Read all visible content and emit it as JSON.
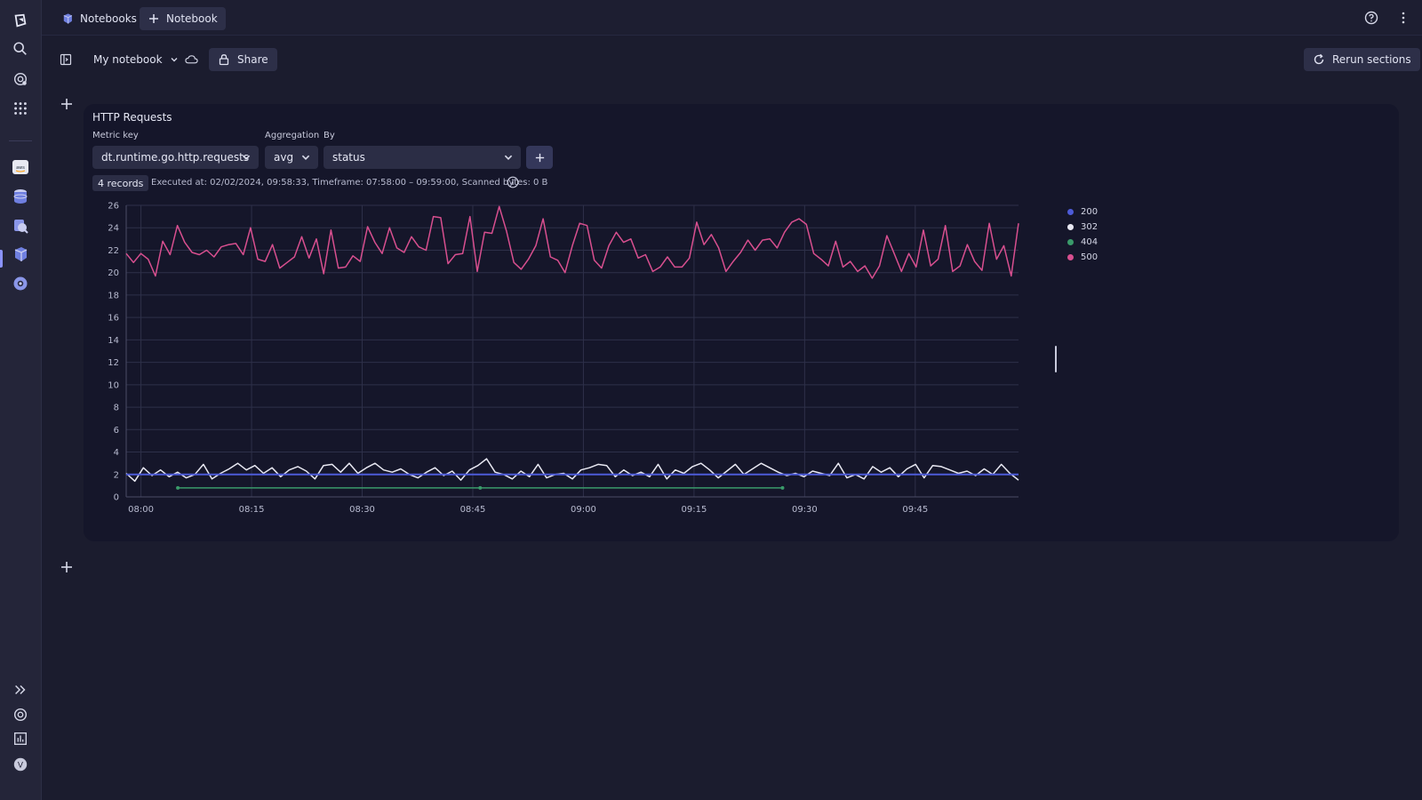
{
  "topbar": {
    "app_tab_label": "Notebooks",
    "new_tab_label": "Notebook"
  },
  "toolbar": {
    "notebook_name": "My notebook",
    "share_label": "Share",
    "rerun_label": "Rerun sections"
  },
  "section": {
    "title": "HTTP Requests",
    "metric_key_label": "Metric key",
    "metric_key_value": "dt.runtime.go.http.requests",
    "aggregation_label": "Aggregation",
    "aggregation_value": "avg",
    "by_label": "By",
    "by_value": "status",
    "records_badge": "4 records",
    "meta_text": "Executed at: 02/02/2024, 09:58:33, Timeframe: 07:58:00 – 09:59:00, Scanned bytes: 0 B"
  },
  "colors": {
    "s200": "#4d5bd8",
    "s302": "#e8e8f2",
    "s404": "#3a9a6a",
    "s500": "#d84f8f"
  },
  "chart_data": {
    "type": "line",
    "x_ticks": [
      "08:00",
      "08:15",
      "08:30",
      "08:45",
      "09:00",
      "09:15",
      "09:30",
      "09:45"
    ],
    "y_ticks": [
      "0",
      "2",
      "4",
      "6",
      "8",
      "10",
      "12",
      "14",
      "16",
      "18",
      "20",
      "22",
      "24",
      "26"
    ],
    "ylim": [
      0,
      26
    ],
    "x_start": "07:58",
    "x_end": "09:59",
    "series": [
      {
        "name": "200",
        "color": "#4d5bd8",
        "values": [
          2,
          2
        ]
      },
      {
        "name": "302",
        "color": "#e8e8f2",
        "values": [
          2.1,
          1.4,
          2.6,
          1.9,
          2.4,
          1.8,
          2.2,
          1.7,
          2.0,
          2.9,
          1.6,
          2.1,
          2.5,
          3.0,
          2.4,
          2.8,
          2.1,
          2.6,
          1.8,
          2.4,
          2.7,
          2.3,
          1.6,
          2.8,
          2.9,
          2.2,
          3.0,
          2.1,
          2.6,
          3.0,
          2.4,
          2.2,
          2.5,
          2.0,
          1.7,
          2.2,
          2.6,
          1.9,
          2.3,
          1.5,
          2.4,
          2.8,
          3.4,
          2.2,
          2.0,
          1.6,
          2.3,
          1.8,
          2.9,
          1.7,
          2.0,
          2.1,
          1.6,
          2.4,
          2.6,
          2.9,
          2.8,
          1.8,
          2.4,
          1.9,
          2.2,
          1.8,
          2.9,
          1.6,
          2.4,
          2.1,
          2.7,
          3.0,
          2.4,
          1.7,
          2.3,
          2.9,
          2.0,
          2.5,
          3.0,
          2.6,
          2.2,
          1.9,
          2.1,
          1.8,
          2.3,
          2.1,
          1.9,
          3.0,
          1.7,
          2.0,
          1.6,
          2.7,
          2.2,
          2.6,
          1.8,
          2.5,
          2.9,
          1.7,
          2.8,
          2.7,
          2.4,
          2.1,
          2.3,
          1.9,
          2.5,
          2.0,
          2.9,
          2.1,
          1.5
        ]
      },
      {
        "name": "404",
        "color": "#3a9a6a",
        "values": [
          0.8,
          0.8,
          0.8
        ]
      },
      {
        "name": "500",
        "color": "#d84f8f",
        "values": [
          21.7,
          20.9,
          21.7,
          21.2,
          19.7,
          22.8,
          21.6,
          24.2,
          22.7,
          21.8,
          21.6,
          22.0,
          21.4,
          22.3,
          22.5,
          22.6,
          21.6,
          24.0,
          21.2,
          21.0,
          22.5,
          20.4,
          20.9,
          21.4,
          23.2,
          21.3,
          23.0,
          19.9,
          23.8,
          20.4,
          20.5,
          21.5,
          21.0,
          24.1,
          22.7,
          21.7,
          24.0,
          22.2,
          21.8,
          23.2,
          22.3,
          22.0,
          25.0,
          24.9,
          20.8,
          21.6,
          21.7,
          25.0,
          20.1,
          23.6,
          23.5,
          25.9,
          23.7,
          20.9,
          20.3,
          21.2,
          22.4,
          24.8,
          21.4,
          21.1,
          20.0,
          22.4,
          24.4,
          24.2,
          21.1,
          20.4,
          22.4,
          23.6,
          22.7,
          23.0,
          21.3,
          21.6,
          20.1,
          20.5,
          21.4,
          20.5,
          20.5,
          21.3,
          24.5,
          22.5,
          23.4,
          22.2,
          20.1,
          21.0,
          21.8,
          22.9,
          22.0,
          22.9,
          23.0,
          22.2,
          23.6,
          24.5,
          24.8,
          24.3,
          21.7,
          21.2,
          20.6,
          22.8,
          20.5,
          21.0,
          20.1,
          20.6,
          19.5,
          20.6,
          23.3,
          21.7,
          20.1,
          21.7,
          20.5,
          23.8,
          20.6,
          21.2,
          24.2,
          20.1,
          20.6,
          22.5,
          21.0,
          20.2,
          24.4,
          21.2,
          22.4,
          19.7,
          24.4
        ]
      }
    ]
  }
}
